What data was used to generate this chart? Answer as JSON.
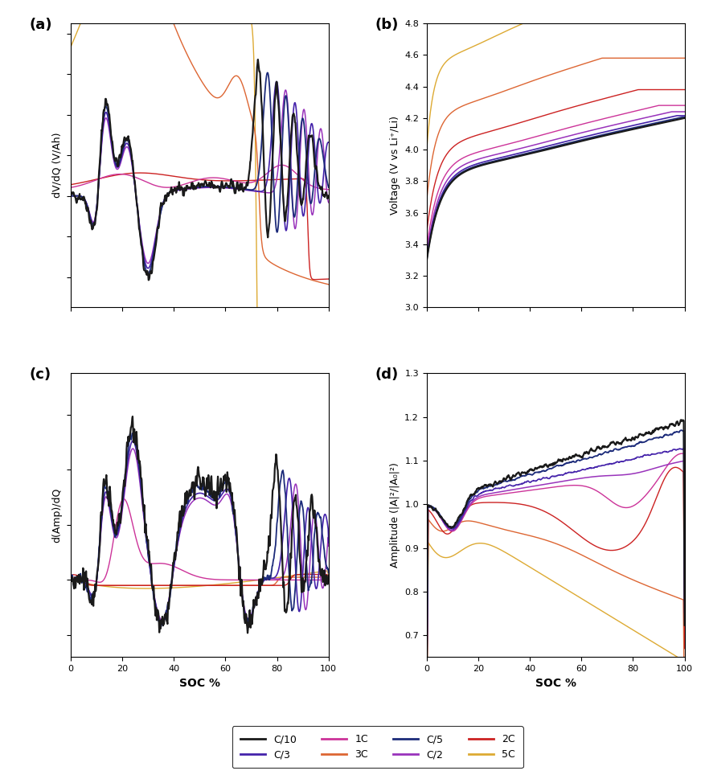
{
  "colors": {
    "C10": "#1a1a1a",
    "C5": "#1c2b7a",
    "C3": "#4422aa",
    "C2": "#9933bb",
    "1C": "#cc3399",
    "2C": "#cc2222",
    "3C": "#dd6633",
    "5C": "#ddaa33"
  },
  "legend_entries": [
    {
      "label": "C/10",
      "color": "#1a1a1a"
    },
    {
      "label": "C/5",
      "color": "#1c2b7a"
    },
    {
      "label": "C/3",
      "color": "#4422aa"
    },
    {
      "label": "C/2",
      "color": "#9933bb"
    },
    {
      "label": "1C",
      "color": "#cc3399"
    },
    {
      "label": "2C",
      "color": "#cc2222"
    },
    {
      "label": "3C",
      "color": "#dd6633"
    },
    {
      "label": "5C",
      "color": "#ddaa33"
    }
  ],
  "panel_labels": [
    "(a)",
    "(b)",
    "(c)",
    "(d)"
  ],
  "ylabel_a": "dV/dQ (V/Ah)",
  "ylabel_b": "Voltage (V vs Li⁺/Li)",
  "ylabel_c": "d(Amp)/dQ",
  "ylabel_d": "Amplitude (|A|²/|A₀|²)",
  "xlabel_cd": "SOC %",
  "ylim_b": [
    3.0,
    4.8
  ],
  "ylim_d": [
    0.65,
    1.3
  ],
  "xlim": [
    0,
    100
  ]
}
